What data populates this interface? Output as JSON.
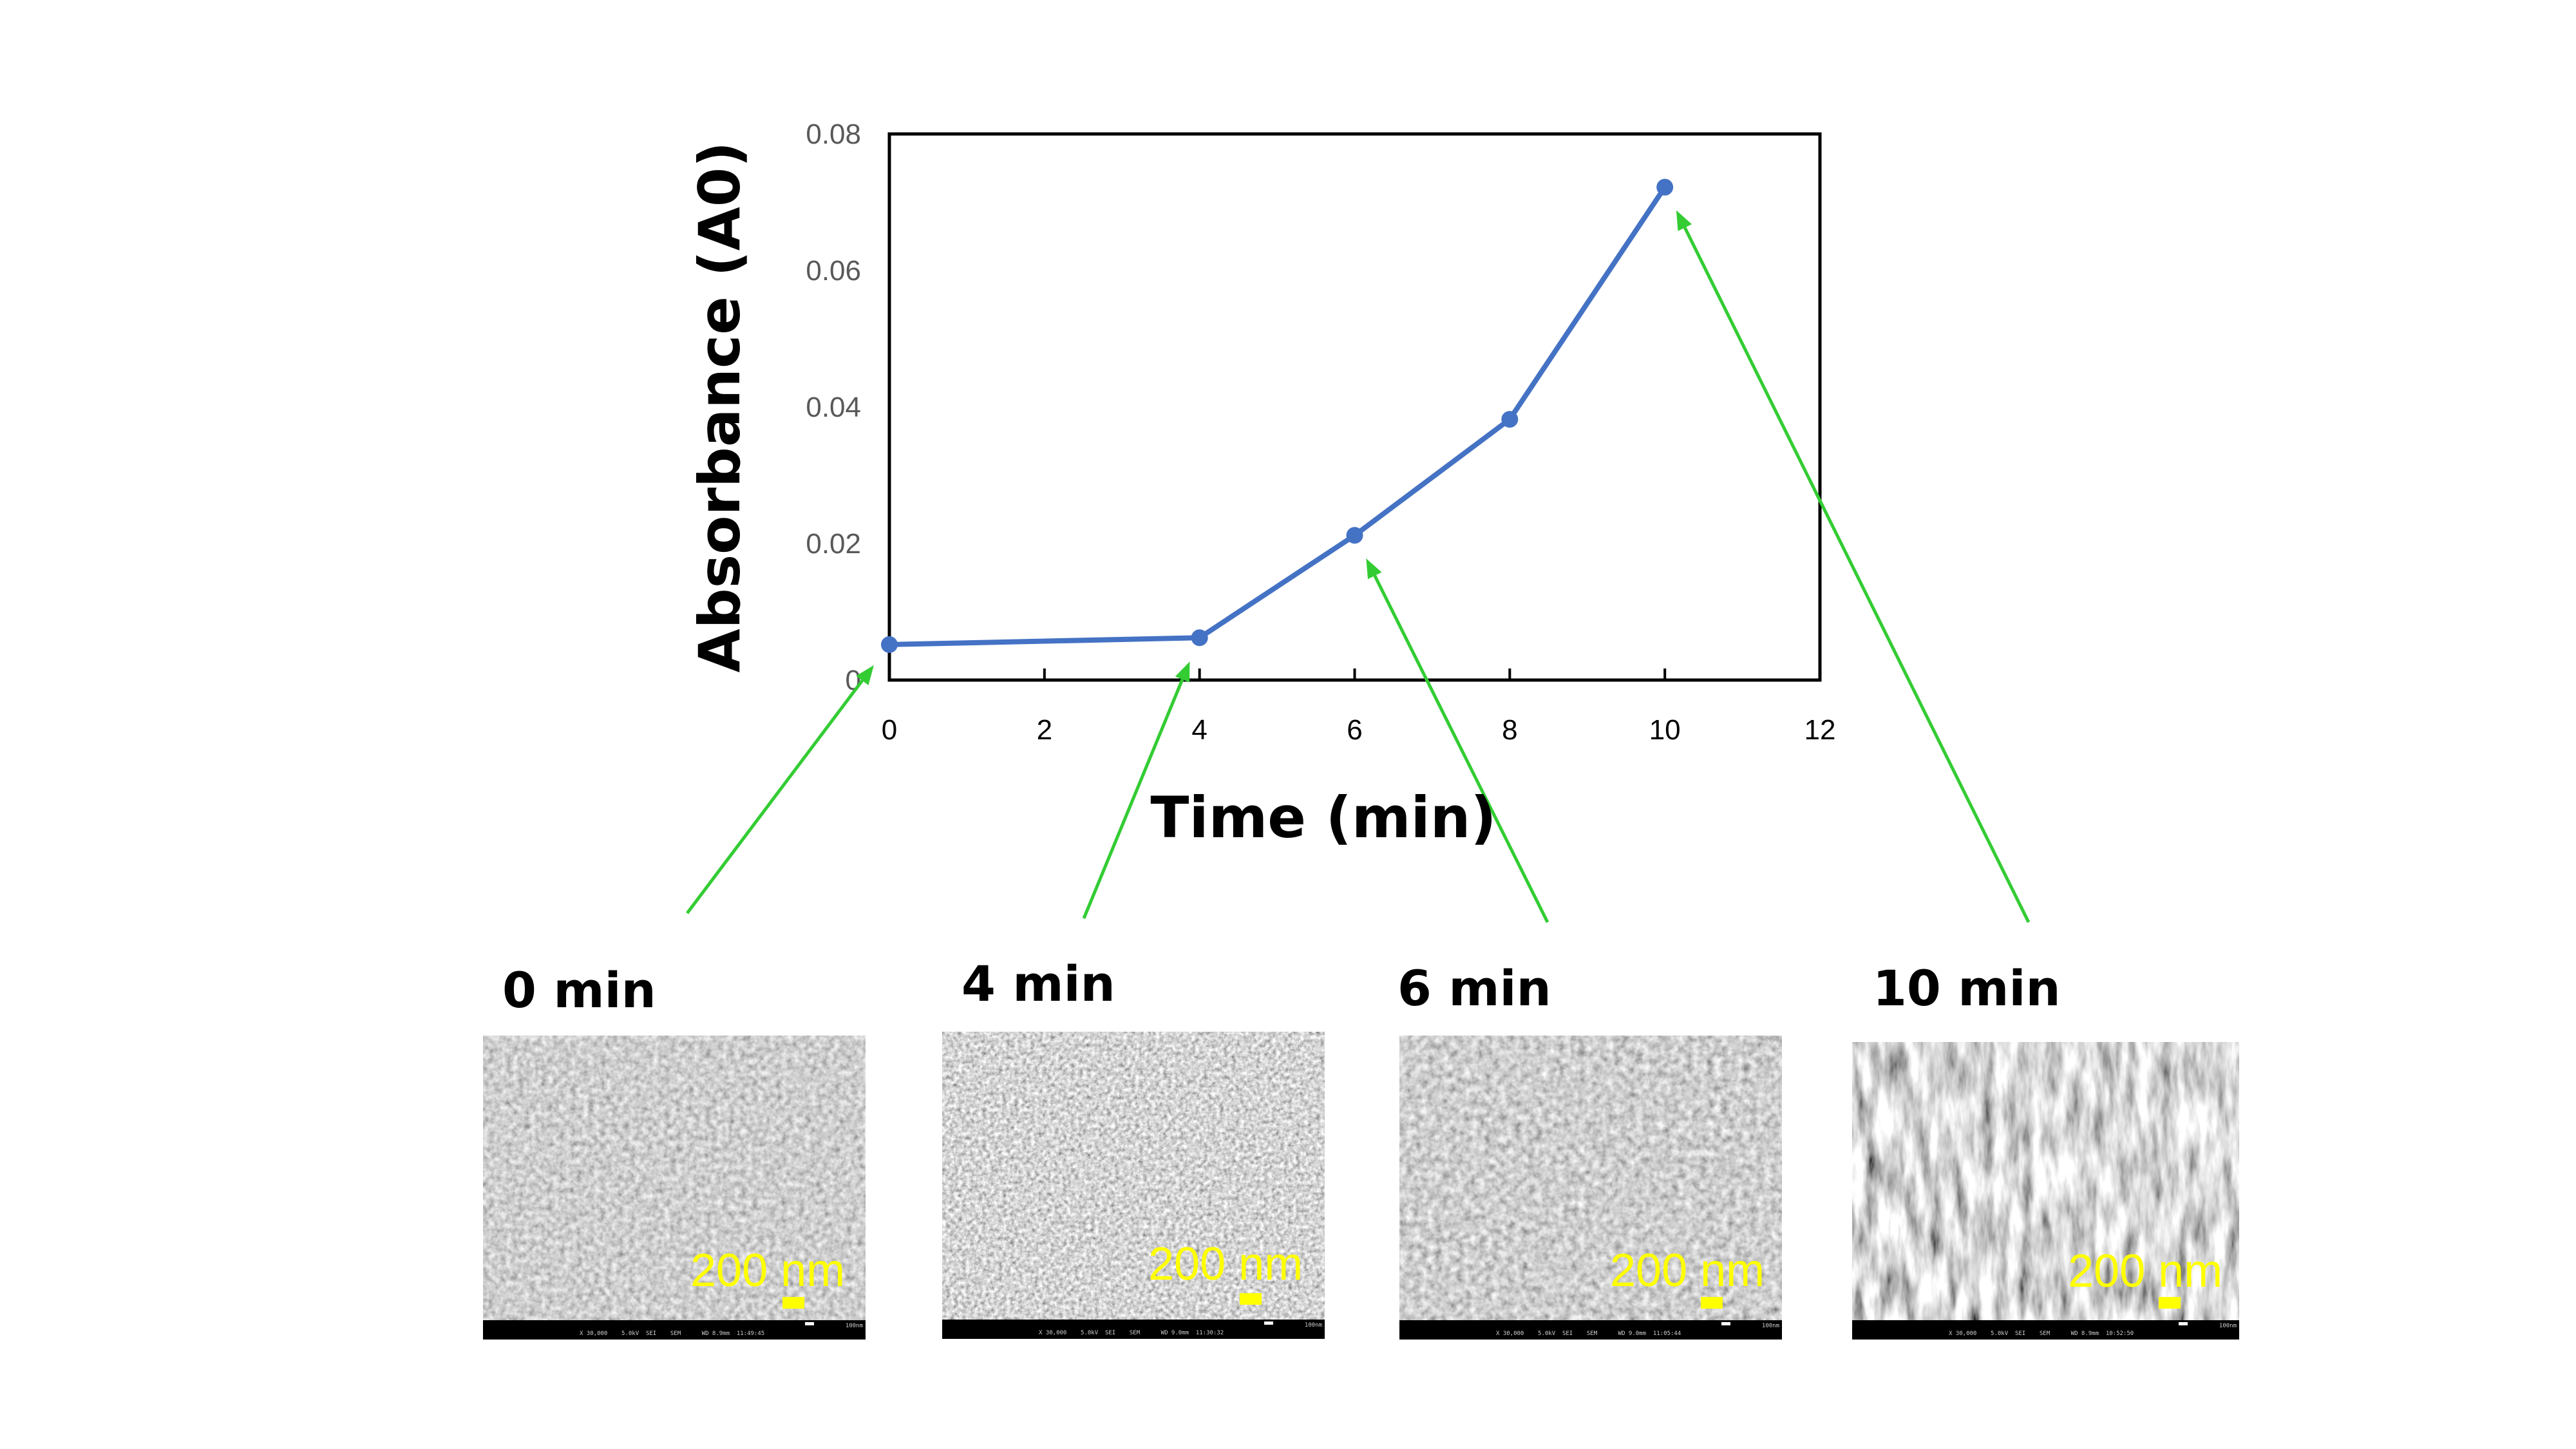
{
  "chart_data": {
    "type": "line",
    "x": [
      0,
      4,
      6,
      8,
      10
    ],
    "series": [
      {
        "values": [
          0.0052,
          0.0062,
          0.0212,
          0.0382,
          0.0722
        ]
      }
    ],
    "xlabel": "Time (min)",
    "ylabel": "Absorbance (A0)",
    "xlim": [
      0,
      12
    ],
    "ylim": [
      0,
      0.08
    ],
    "xticks": [
      "0",
      "2",
      "4",
      "6",
      "8",
      "10",
      "12"
    ],
    "yticks": [
      "0",
      "0.02",
      "0.04",
      "0.06",
      "0.08"
    ],
    "grid": false,
    "line_color": "#4472c4",
    "arrow_color": "#33cc33"
  },
  "panels": [
    {
      "label": "0 min",
      "time": 0,
      "scale_text": "200 nm",
      "footer": "X 30,000    5.0kV  SEI    SEM      WD 8.9mm  11:49:45",
      "mini_scale": "100nm"
    },
    {
      "label": "4 min",
      "time": 4,
      "scale_text": "200 nm",
      "footer": "X 30,000    5.0kV  SEI    SEM      WD 9.0mm  11:30:32",
      "mini_scale": "100nm"
    },
    {
      "label": "6 min",
      "time": 6,
      "scale_text": "200 nm",
      "footer": "X 30,000    5.0kV  SEI    SEM      WD 9.0mm  11:05:44",
      "mini_scale": "100nm"
    },
    {
      "label": "10 min",
      "time": 10,
      "scale_text": "200 nm",
      "footer": "X 30,000    5.0kV  SEI    SEM      WD 8.9mm  10:52:50",
      "mini_scale": "100nm"
    }
  ]
}
